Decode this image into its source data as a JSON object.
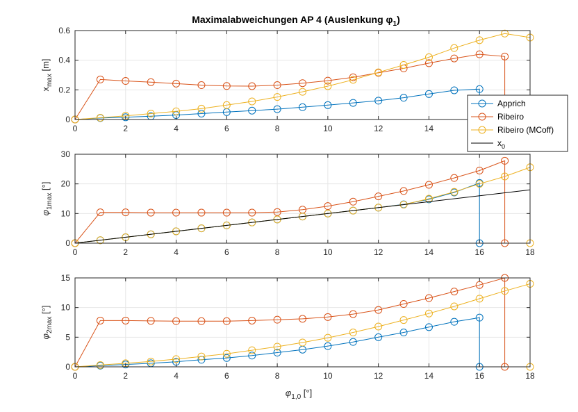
{
  "figure": {
    "title": "Maximalabweichungen AP 4 (Auslenkung φ",
    "title_sub": "1",
    "title_close": ")",
    "xlabel_main": "φ",
    "xlabel_sub": "1,0",
    "xlabel_unit": " [°]"
  },
  "colors": {
    "Apprich": "#0072BD",
    "Ribeiro": "#D95319",
    "Ribeiro (MCoff)": "#EDB120",
    "x0": "#000000",
    "grid": "#e6e6e6",
    "axis": "#262626"
  },
  "legend": {
    "location": "inside-right of top subplot",
    "entries": [
      {
        "label": "Apprich",
        "series": "Apprich",
        "marker": "circle"
      },
      {
        "label": "Ribeiro",
        "series": "Ribeiro",
        "marker": "circle"
      },
      {
        "label": "Ribeiro (MCoff)",
        "series": "Ribeiro (MCoff)",
        "marker": "circle"
      },
      {
        "label_main": "x",
        "label_sub": "0",
        "series": "x0",
        "marker": "none"
      }
    ]
  },
  "chart_data": [
    {
      "type": "line",
      "ylabel_main": "x",
      "ylabel_sub": "max",
      "ylabel_unit": " [m]",
      "xlim": [
        0,
        18
      ],
      "ylim": [
        0,
        0.6
      ],
      "xticks": [
        0,
        2,
        4,
        6,
        8,
        10,
        12,
        14,
        16
      ],
      "yticks": [
        0,
        0.2,
        0.4,
        0.6
      ],
      "ytick_labels": [
        "0",
        "0.2",
        "0.4",
        "0.6"
      ],
      "grid": true,
      "series": [
        {
          "name": "Apprich",
          "marker": "circle",
          "x": [
            0,
            1,
            2,
            3,
            4,
            5,
            6,
            7,
            8,
            9,
            10,
            11,
            12,
            13,
            14,
            15,
            16,
            16
          ],
          "y": [
            0,
            0.01,
            0.015,
            0.022,
            0.03,
            0.04,
            0.05,
            0.06,
            0.07,
            0.083,
            0.097,
            0.112,
            0.127,
            0.147,
            0.172,
            0.197,
            0.205,
            0
          ]
        },
        {
          "name": "Ribeiro",
          "marker": "circle",
          "x": [
            0,
            1,
            2,
            3,
            4,
            5,
            6,
            7,
            8,
            9,
            10,
            11,
            12,
            13,
            14,
            15,
            16,
            17,
            17
          ],
          "y": [
            0,
            0.27,
            0.26,
            0.252,
            0.242,
            0.232,
            0.226,
            0.225,
            0.232,
            0.245,
            0.262,
            0.285,
            0.315,
            0.345,
            0.38,
            0.412,
            0.44,
            0.425,
            0
          ]
        },
        {
          "name": "Ribeiro (MCoff)",
          "marker": "circle",
          "x": [
            0,
            1,
            2,
            3,
            4,
            5,
            6,
            7,
            8,
            9,
            10,
            11,
            12,
            13,
            14,
            15,
            16,
            17,
            18,
            18
          ],
          "y": [
            0,
            0.012,
            0.025,
            0.04,
            0.055,
            0.073,
            0.097,
            0.122,
            0.152,
            0.187,
            0.225,
            0.268,
            0.318,
            0.368,
            0.42,
            0.482,
            0.535,
            0.58,
            0.553,
            0
          ]
        },
        {
          "name": "x0",
          "marker": "none",
          "x": [
            0,
            18
          ],
          "y": [
            0,
            0
          ]
        }
      ]
    },
    {
      "type": "line",
      "ylabel_main": "φ",
      "ylabel_sub": "1max",
      "ylabel_unit": " [°]",
      "xlim": [
        0,
        18
      ],
      "ylim": [
        0,
        30
      ],
      "xticks": [
        0,
        2,
        4,
        6,
        8,
        10,
        12,
        14,
        16,
        18
      ],
      "yticks": [
        0,
        10,
        20,
        30
      ],
      "ytick_labels": [
        "0",
        "10",
        "20",
        "30"
      ],
      "grid": true,
      "series": [
        {
          "name": "Apprich",
          "marker": "circle",
          "x": [
            0,
            1,
            2,
            3,
            4,
            5,
            6,
            7,
            8,
            9,
            10,
            11,
            12,
            13,
            14,
            15,
            16,
            16
          ],
          "y": [
            0,
            1,
            2,
            3,
            4,
            5,
            6,
            7,
            8,
            9,
            10,
            11,
            12,
            13.1,
            14.8,
            17.1,
            20.3,
            0
          ]
        },
        {
          "name": "Ribeiro",
          "marker": "circle",
          "x": [
            0,
            1,
            2,
            3,
            4,
            5,
            6,
            7,
            8,
            9,
            10,
            11,
            12,
            13,
            14,
            15,
            16,
            17,
            17
          ],
          "y": [
            0,
            10.4,
            10.4,
            10.3,
            10.3,
            10.3,
            10.3,
            10.3,
            10.5,
            11.3,
            12.5,
            14,
            15.8,
            17.6,
            19.7,
            22,
            24.5,
            27.8,
            0
          ]
        },
        {
          "name": "Ribeiro (MCoff)",
          "marker": "circle",
          "x": [
            0,
            1,
            2,
            3,
            4,
            5,
            6,
            7,
            8,
            9,
            10,
            11,
            12,
            13,
            14,
            15,
            16,
            17,
            18,
            18
          ],
          "y": [
            0,
            1,
            2,
            3,
            4,
            5,
            6,
            7,
            8,
            9,
            10,
            11,
            12,
            13,
            15,
            17.3,
            20,
            22.5,
            25.6,
            0
          ]
        },
        {
          "name": "x0",
          "marker": "none",
          "x": [
            0,
            18
          ],
          "y": [
            0,
            18
          ]
        }
      ]
    },
    {
      "type": "line",
      "ylabel_main": "φ",
      "ylabel_sub": "2max",
      "ylabel_unit": " [°]",
      "xlim": [
        0,
        18
      ],
      "ylim": [
        0,
        15
      ],
      "xticks": [
        0,
        2,
        4,
        6,
        8,
        10,
        12,
        14,
        16,
        18
      ],
      "yticks": [
        0,
        5,
        10,
        15
      ],
      "ytick_labels": [
        "0",
        "5",
        "10",
        "15"
      ],
      "grid": true,
      "series": [
        {
          "name": "Apprich",
          "marker": "circle",
          "x": [
            0,
            1,
            2,
            3,
            4,
            5,
            6,
            7,
            8,
            9,
            10,
            11,
            12,
            13,
            14,
            15,
            16,
            16
          ],
          "y": [
            0,
            0.2,
            0.4,
            0.6,
            0.85,
            1.2,
            1.5,
            1.9,
            2.4,
            2.9,
            3.5,
            4.2,
            5,
            5.8,
            6.7,
            7.6,
            8.3,
            0
          ]
        },
        {
          "name": "Ribeiro",
          "marker": "circle",
          "x": [
            0,
            1,
            2,
            3,
            4,
            5,
            6,
            7,
            8,
            9,
            10,
            11,
            12,
            13,
            14,
            15,
            16,
            17,
            17
          ],
          "y": [
            0,
            7.8,
            7.8,
            7.75,
            7.7,
            7.7,
            7.7,
            7.8,
            7.95,
            8.1,
            8.4,
            8.9,
            9.6,
            10.6,
            11.6,
            12.7,
            13.8,
            15,
            0
          ]
        },
        {
          "name": "Ribeiro (MCoff)",
          "marker": "circle",
          "x": [
            0,
            1,
            2,
            3,
            4,
            5,
            6,
            7,
            8,
            9,
            10,
            11,
            12,
            13,
            14,
            15,
            16,
            17,
            18,
            18
          ],
          "y": [
            0,
            0.3,
            0.6,
            0.9,
            1.3,
            1.75,
            2.2,
            2.8,
            3.4,
            4.1,
            4.9,
            5.8,
            6.8,
            7.9,
            9,
            10.2,
            11.5,
            12.8,
            14,
            0
          ]
        },
        {
          "name": "x0",
          "marker": "none",
          "x": [
            0,
            18
          ],
          "y": [
            0,
            0
          ]
        }
      ]
    }
  ]
}
